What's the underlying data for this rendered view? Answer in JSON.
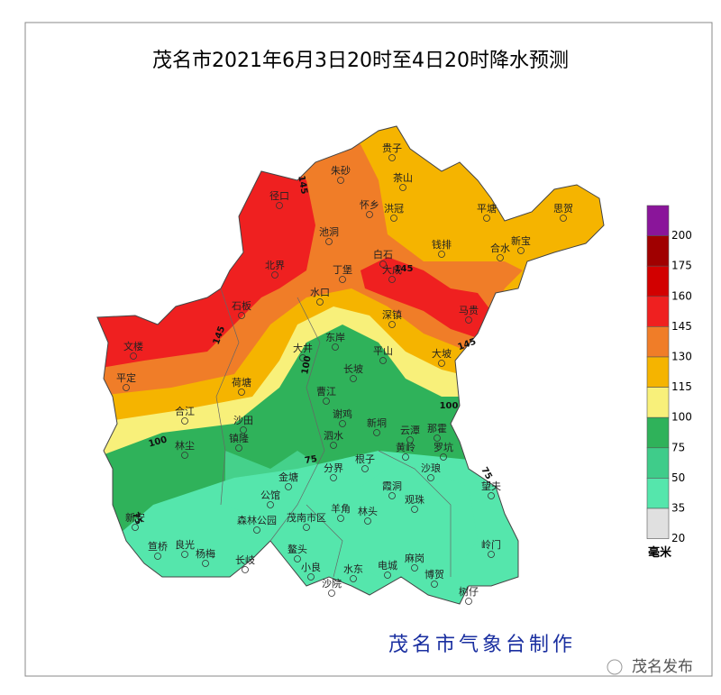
{
  "title": "茂名市2021年6月3日20时至4日20时降水预测",
  "legend": {
    "labels": [
      "200",
      "175",
      "160",
      "145",
      "130",
      "115",
      "100",
      "75",
      "50",
      "35",
      "20"
    ],
    "colors": [
      "#8a159a",
      "#a00000",
      "#d20000",
      "#ef2020",
      "#f07d28",
      "#f5b400",
      "#f8f07a",
      "#2fb25a",
      "#3fcc8a",
      "#55e6ac",
      "#e0e0e0"
    ],
    "unit": "毫米"
  },
  "places": [
    "贵子",
    "朱砂",
    "茶山",
    "怀乡",
    "洪冠",
    "平塘",
    "思贺",
    "径口",
    "池洞",
    "白石",
    "钱排",
    "合水",
    "新宝",
    "北界",
    "丁堡",
    "大成",
    "水口",
    "石板",
    "文楼",
    "平定",
    "合江",
    "沙田",
    "镇隆",
    "林尘",
    "荷塘",
    "大井",
    "东岸",
    "深镇",
    "平山",
    "马贵",
    "大坡",
    "长坡",
    "曹江",
    "谢鸡",
    "新垌",
    "云潭",
    "那霍",
    "泗水",
    "黄岭",
    "罗坑",
    "根子",
    "分界",
    "沙琅",
    "望夫",
    "金塘",
    "霞洞",
    "观珠",
    "公馆",
    "羊角",
    "林头",
    "森林公园",
    "茂南市区",
    "鳌头",
    "岭门",
    "笪桥",
    "良光",
    "杨梅",
    "长岐",
    "小良",
    "水东",
    "电城",
    "麻岗",
    "博贺",
    "沙院",
    "树仔",
    "新安"
  ],
  "contour_labels": [
    "145",
    "145",
    "145",
    "145",
    "100",
    "100",
    "100",
    "75",
    "75",
    "75"
  ],
  "credit": "茂名市气象台制作",
  "watermark": "茂名发布"
}
